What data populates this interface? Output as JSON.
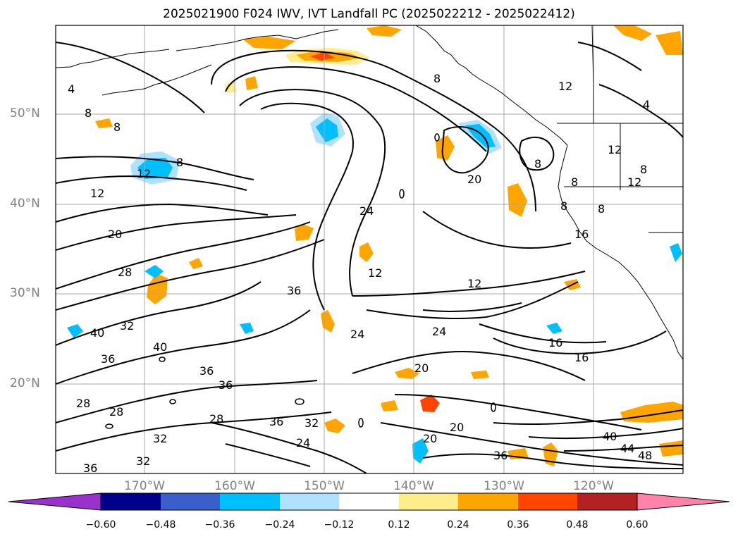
{
  "title": "2025021900 F024 IWV, IVT Landfall PC (2025022212 - 2025022412)",
  "map": {
    "lat_labels": [
      "50°N",
      "40°N",
      "30°N",
      "20°N"
    ],
    "lon_labels": [
      "170°W",
      "160°W",
      "150°W",
      "140°W",
      "130°W",
      "120°W"
    ],
    "contour_labels": [
      "4",
      "8",
      "8",
      "12",
      "8",
      "12",
      "20",
      "28",
      "40",
      "36",
      "40",
      "32",
      "36",
      "28",
      "36",
      "28",
      "28",
      "32",
      "32",
      "36",
      "36",
      "44",
      "48",
      "40",
      "24",
      "24",
      "12",
      "36",
      "24",
      "20",
      "20",
      "20",
      "24",
      "16",
      "16",
      "12",
      "8",
      "8",
      "12",
      "16",
      "8",
      "8",
      "12",
      "8",
      "20",
      "32",
      "36",
      "12",
      "8",
      "4"
    ]
  },
  "colorbar": {
    "colors": [
      "#9932cc",
      "#00008b",
      "#3a5fcd",
      "#00bfff",
      "#b0e2ff",
      "#ffffff",
      "#ffec8b",
      "#ffa500",
      "#ff4500",
      "#b22222",
      "#ff82ab"
    ],
    "labels": [
      "−0.60",
      "−0.48",
      "−0.36",
      "−0.24",
      "−0.12",
      "0.12",
      "0.24",
      "0.36",
      "0.48",
      "0.60"
    ]
  }
}
